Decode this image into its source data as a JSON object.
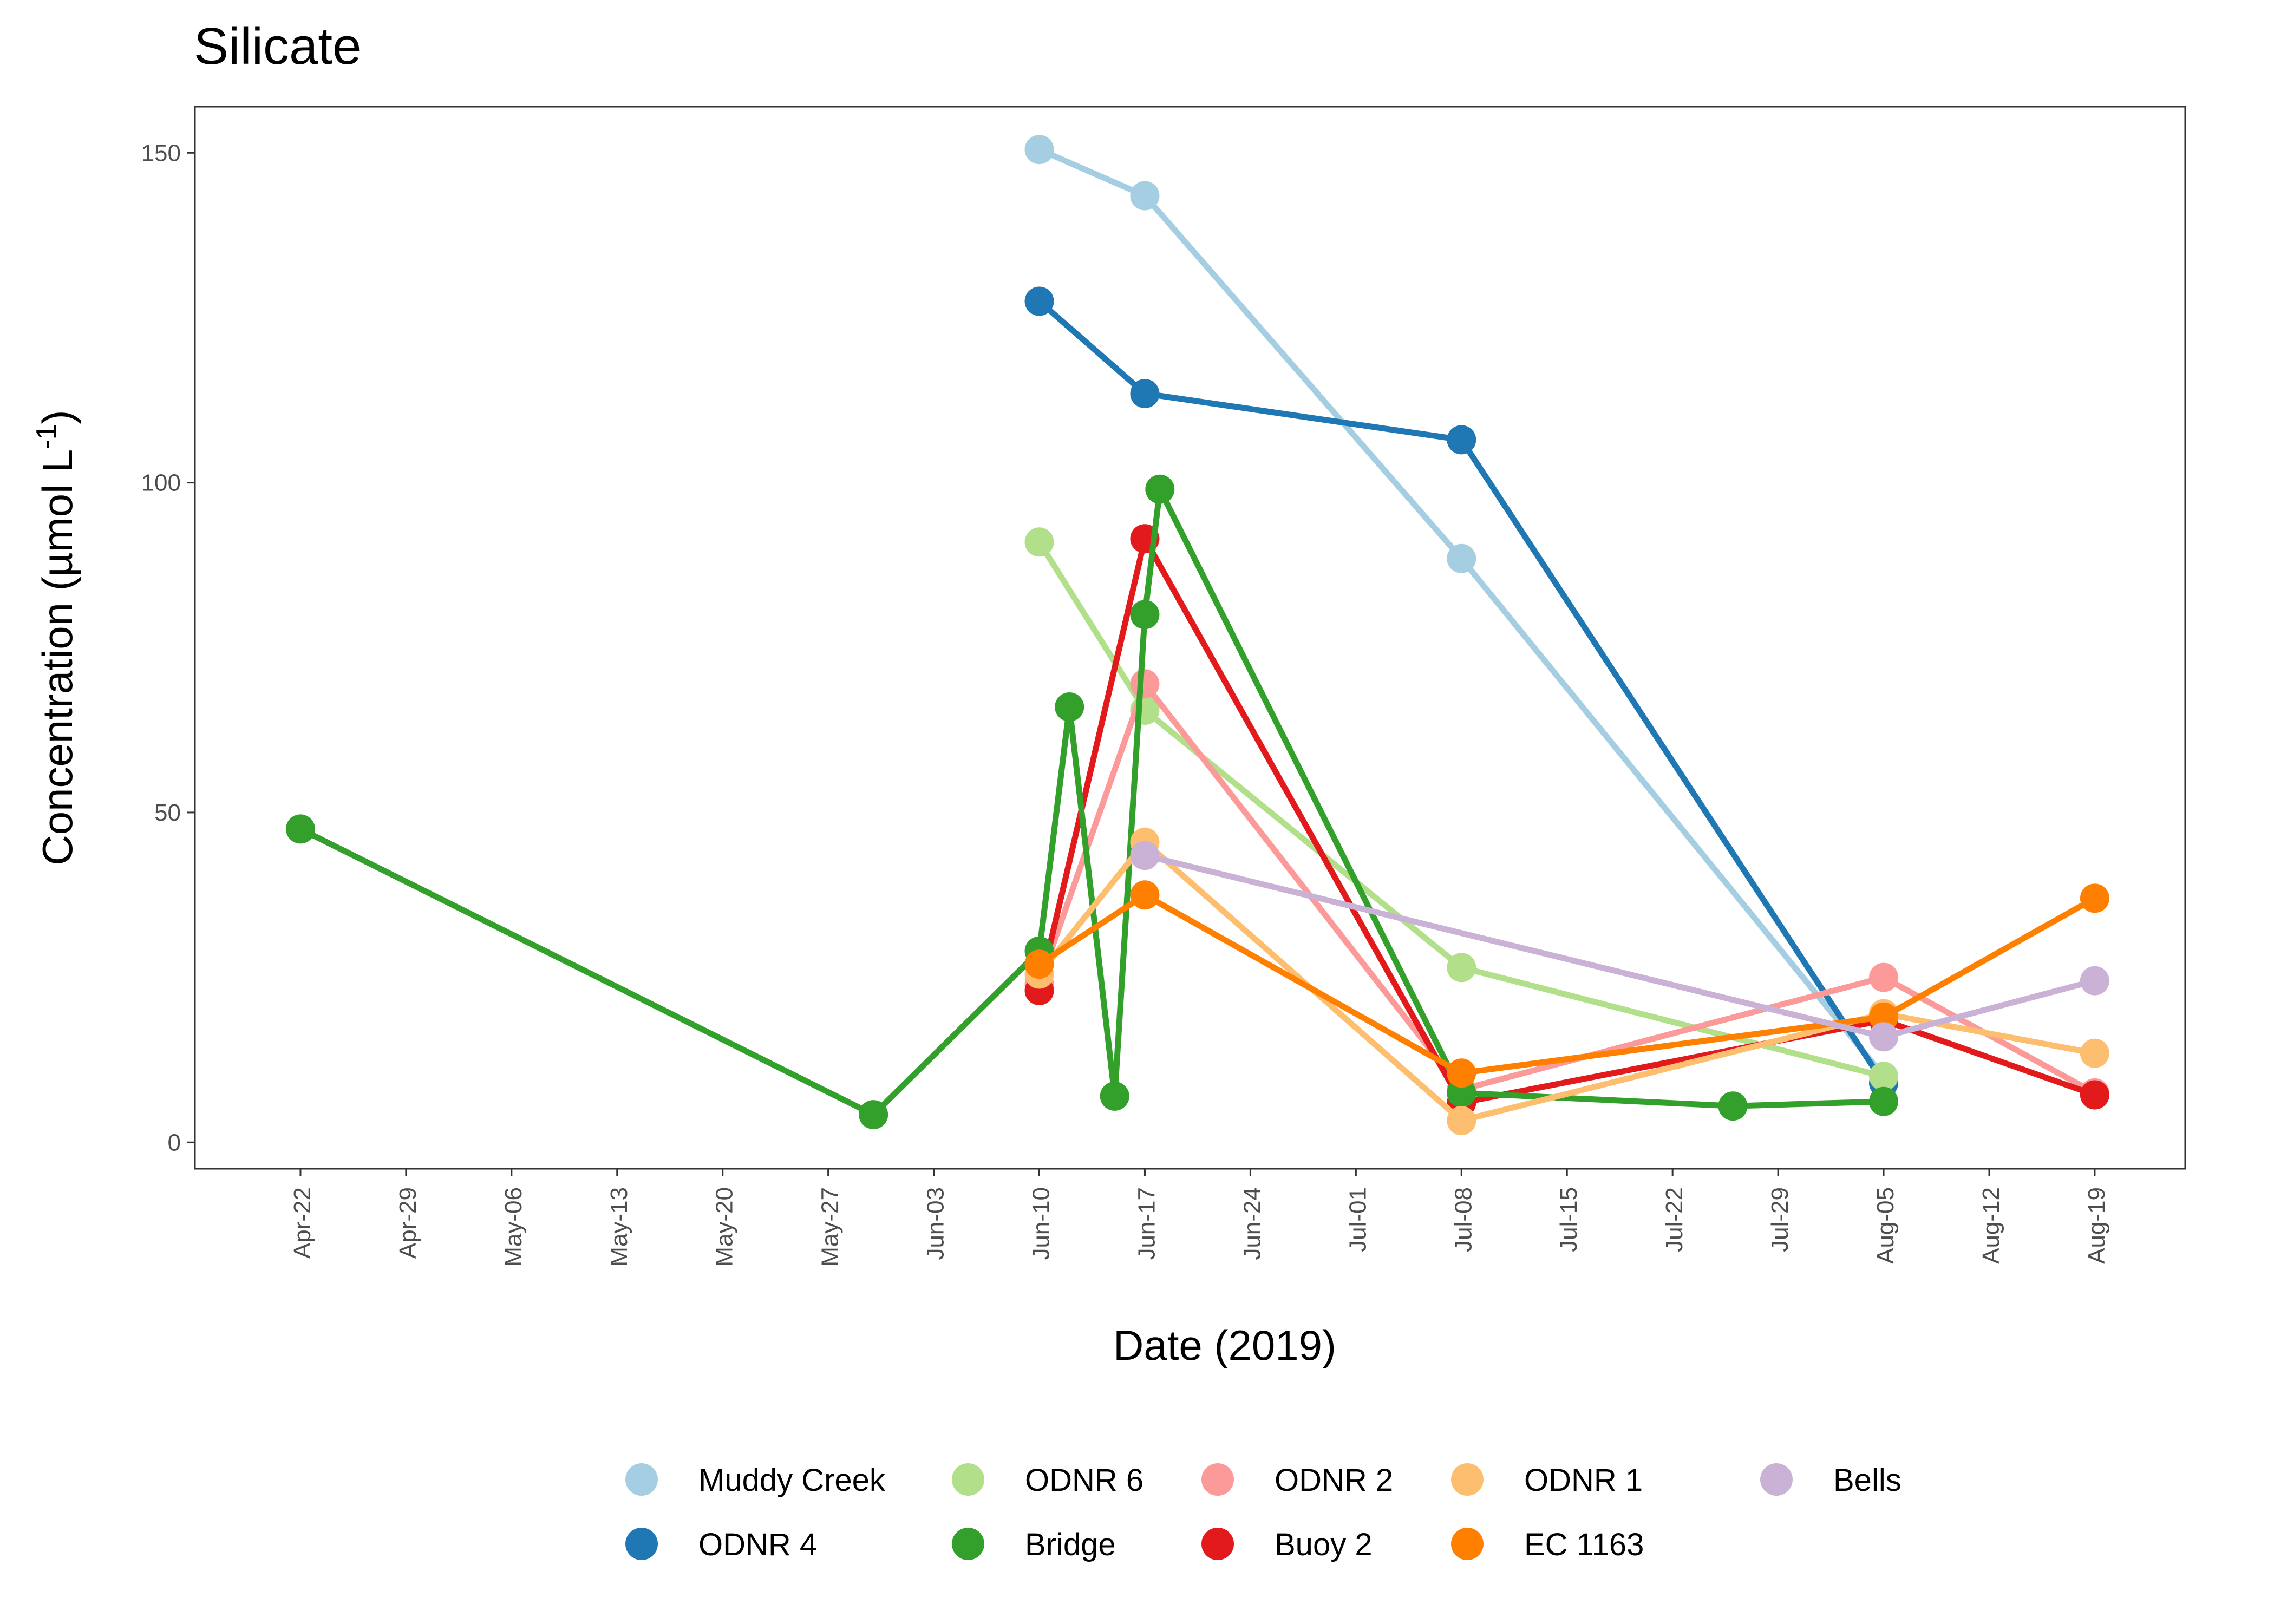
{
  "chart_data": {
    "type": "line",
    "title": "Silicate",
    "xlabel": "Date (2019)",
    "ylabel": "Concentration (µmol L",
    "ylabel_superscript": "-1",
    "ylabel_suffix": ")",
    "xlim": [
      "2019-04-15",
      "2019-08-25"
    ],
    "ylim": [
      -4,
      157
    ],
    "yticks": [
      0,
      50,
      100,
      150
    ],
    "xticks": [
      {
        "date": "2019-04-22",
        "label": "Apr-22"
      },
      {
        "date": "2019-04-29",
        "label": "Apr-29"
      },
      {
        "date": "2019-05-06",
        "label": "May-06"
      },
      {
        "date": "2019-05-13",
        "label": "May-13"
      },
      {
        "date": "2019-05-20",
        "label": "May-20"
      },
      {
        "date": "2019-05-27",
        "label": "May-27"
      },
      {
        "date": "2019-06-03",
        "label": "Jun-03"
      },
      {
        "date": "2019-06-10",
        "label": "Jun-10"
      },
      {
        "date": "2019-06-17",
        "label": "Jun-17"
      },
      {
        "date": "2019-06-24",
        "label": "Jun-24"
      },
      {
        "date": "2019-07-01",
        "label": "Jul-01"
      },
      {
        "date": "2019-07-08",
        "label": "Jul-08"
      },
      {
        "date": "2019-07-15",
        "label": "Jul-15"
      },
      {
        "date": "2019-07-22",
        "label": "Jul-22"
      },
      {
        "date": "2019-07-29",
        "label": "Jul-29"
      },
      {
        "date": "2019-08-05",
        "label": "Aug-05"
      },
      {
        "date": "2019-08-12",
        "label": "Aug-12"
      },
      {
        "date": "2019-08-19",
        "label": "Aug-19"
      }
    ],
    "grid": false,
    "legend_position": "bottom",
    "series": [
      {
        "name": "Muddy Creek",
        "color": "#A6CEE3",
        "points": [
          {
            "x": "2019-06-10",
            "y": 150.5
          },
          {
            "x": "2019-06-17",
            "y": 143.5
          },
          {
            "x": "2019-07-08",
            "y": 88.5
          },
          {
            "x": "2019-08-05",
            "y": 10
          }
        ]
      },
      {
        "name": "ODNR 4",
        "color": "#1F78B4",
        "points": [
          {
            "x": "2019-06-10",
            "y": 127.5
          },
          {
            "x": "2019-06-17",
            "y": 113.5
          },
          {
            "x": "2019-07-08",
            "y": 106.5
          },
          {
            "x": "2019-08-05",
            "y": 9
          }
        ]
      },
      {
        "name": "ODNR 6",
        "color": "#B2DF8A",
        "points": [
          {
            "x": "2019-06-10",
            "y": 91
          },
          {
            "x": "2019-06-17",
            "y": 65.5
          },
          {
            "x": "2019-07-08",
            "y": 26.5
          },
          {
            "x": "2019-08-05",
            "y": 10
          }
        ]
      },
      {
        "name": "Bridge",
        "color": "#33A02C",
        "points": [
          {
            "x": "2019-04-22",
            "y": 47.5
          },
          {
            "x": "2019-05-30",
            "y": 4.2
          },
          {
            "x": "2019-06-10",
            "y": 29
          },
          {
            "x": "2019-06-12",
            "y": 66
          },
          {
            "x": "2019-06-15",
            "y": 7
          },
          {
            "x": "2019-06-17",
            "y": 80
          },
          {
            "x": "2019-06-18",
            "y": 99
          },
          {
            "x": "2019-07-08",
            "y": 7.5
          },
          {
            "x": "2019-07-26",
            "y": 5.5
          },
          {
            "x": "2019-08-05",
            "y": 6.2
          }
        ]
      },
      {
        "name": "ODNR 2",
        "color": "#FB9A99",
        "points": [
          {
            "x": "2019-06-10",
            "y": 24
          },
          {
            "x": "2019-06-17",
            "y": 69.5
          },
          {
            "x": "2019-07-08",
            "y": 8
          },
          {
            "x": "2019-08-05",
            "y": 25
          },
          {
            "x": "2019-08-19",
            "y": 7.5
          }
        ]
      },
      {
        "name": "Buoy 2",
        "color": "#E31A1C",
        "points": [
          {
            "x": "2019-06-10",
            "y": 23
          },
          {
            "x": "2019-06-17",
            "y": 91.5
          },
          {
            "x": "2019-07-08",
            "y": 6
          },
          {
            "x": "2019-08-05",
            "y": 18.5
          },
          {
            "x": "2019-08-19",
            "y": 7.2
          }
        ]
      },
      {
        "name": "ODNR 1",
        "color": "#FDBF6F",
        "points": [
          {
            "x": "2019-06-10",
            "y": 25.5
          },
          {
            "x": "2019-06-17",
            "y": 45.5
          },
          {
            "x": "2019-07-08",
            "y": 3.3
          },
          {
            "x": "2019-08-05",
            "y": 19.5
          },
          {
            "x": "2019-08-19",
            "y": 13.5
          }
        ]
      },
      {
        "name": "EC 1163",
        "color": "#FF7F00",
        "points": [
          {
            "x": "2019-06-10",
            "y": 27
          },
          {
            "x": "2019-06-17",
            "y": 37.5
          },
          {
            "x": "2019-07-08",
            "y": 10.5
          },
          {
            "x": "2019-08-05",
            "y": 19
          },
          {
            "x": "2019-08-19",
            "y": 37
          }
        ]
      },
      {
        "name": "Bells",
        "color": "#CAB2D6",
        "points": [
          {
            "x": "2019-06-17",
            "y": 43.5
          },
          {
            "x": "2019-08-05",
            "y": 16
          },
          {
            "x": "2019-08-19",
            "y": 24.5
          }
        ]
      }
    ],
    "draw_order": [
      "Muddy Creek",
      "ODNR 4",
      "ODNR 6",
      "ODNR 2",
      "Buoy 2",
      "Bridge",
      "ODNR 1",
      "EC 1163",
      "Bells"
    ]
  }
}
